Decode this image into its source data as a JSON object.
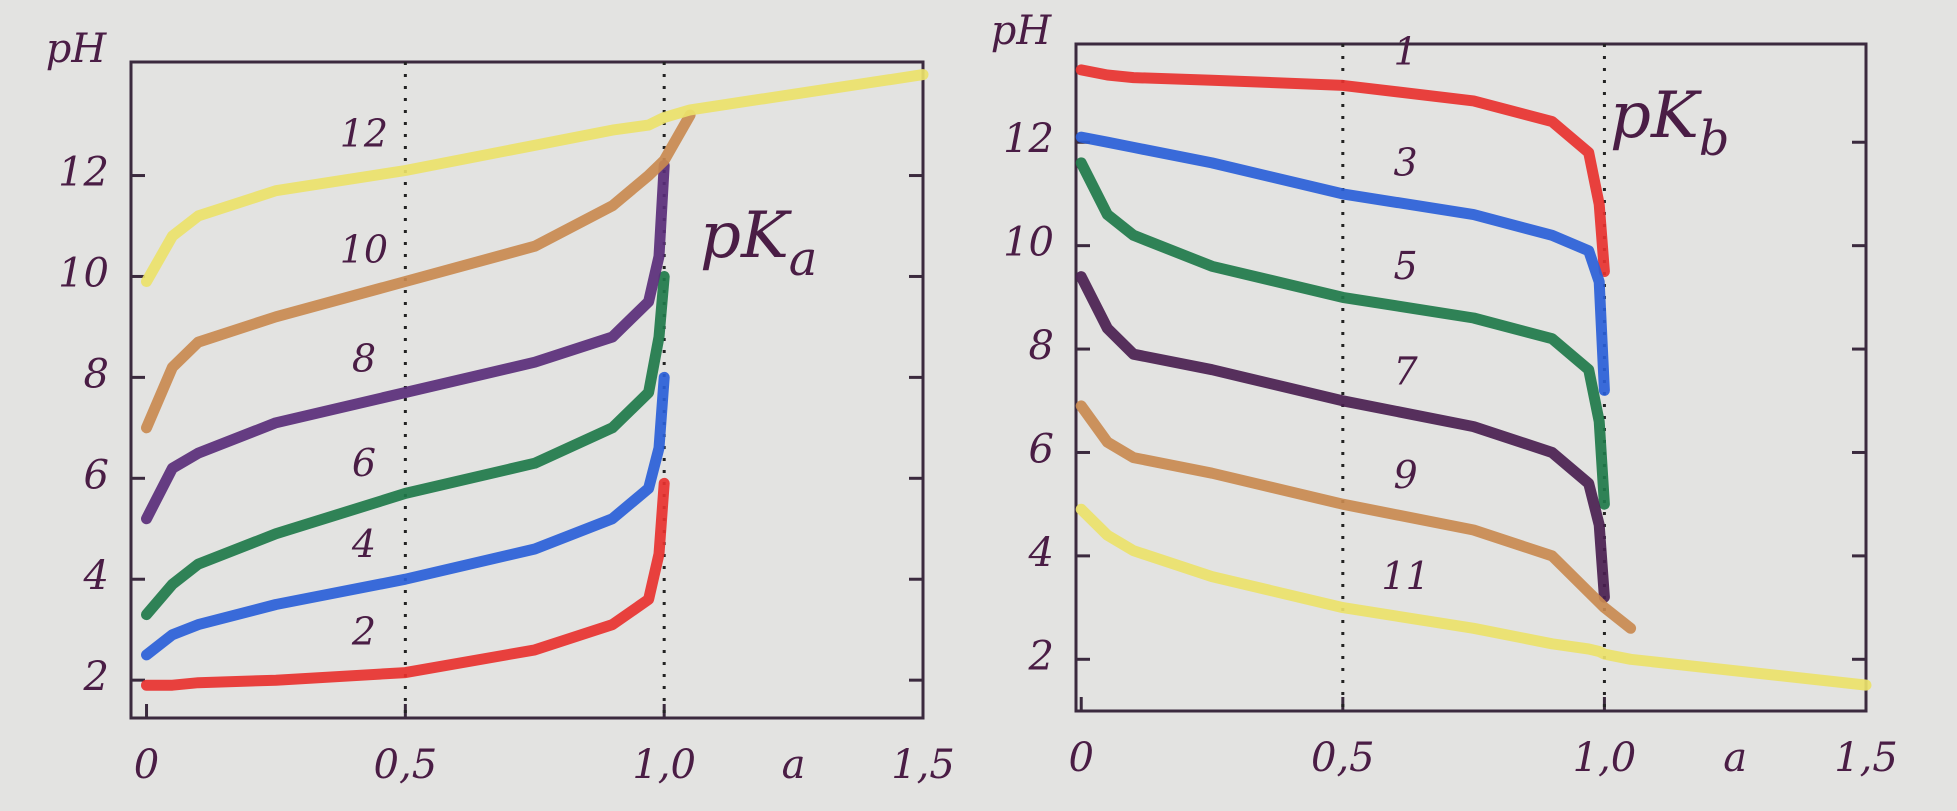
{
  "chart_data": [
    {
      "type": "line",
      "y_label": "pH",
      "x_label": "a",
      "annotation": "pK",
      "annotation_subscript": "a",
      "x": [
        0,
        0.05,
        0.1,
        0.25,
        0.5,
        0.75,
        0.9,
        0.97,
        0.99,
        1.0,
        1.05,
        1.5
      ],
      "xlim": [
        -0.03,
        1.5
      ],
      "xticks": [
        0,
        {
          "value": 0.5,
          "label": "0,5"
        },
        {
          "value": 1.0,
          "label": "1,0"
        },
        {
          "value": 1.5,
          "label": "1,5"
        }
      ],
      "ylim": [
        1.25,
        14.25
      ],
      "yticks": [
        2,
        4,
        6,
        8,
        10,
        12
      ],
      "series": [
        {
          "name": "2",
          "color": "#e8322f",
          "values": [
            1.9,
            1.9,
            1.95,
            2.0,
            2.15,
            2.6,
            3.1,
            3.6,
            4.5,
            5.9,
            null,
            null
          ]
        },
        {
          "name": "4",
          "color": "#2a5fd8",
          "values": [
            2.5,
            2.9,
            3.1,
            3.5,
            4.0,
            4.6,
            5.2,
            5.8,
            6.6,
            8.0,
            null,
            null
          ]
        },
        {
          "name": "6",
          "color": "#1f7a4a",
          "values": [
            3.3,
            3.9,
            4.3,
            4.9,
            5.7,
            6.3,
            7.0,
            7.7,
            8.8,
            10.0,
            null,
            null
          ]
        },
        {
          "name": "8",
          "color": "#5a2e7a",
          "values": [
            5.2,
            6.2,
            6.5,
            7.1,
            7.7,
            8.3,
            8.8,
            9.5,
            10.4,
            12.2,
            null,
            null
          ]
        },
        {
          "name": "10",
          "color": "#c98a50",
          "values": [
            7.0,
            8.2,
            8.7,
            9.2,
            9.9,
            10.6,
            11.4,
            12.0,
            12.2,
            12.3,
            13.2,
            null
          ]
        },
        {
          "name": "12",
          "color": "#ece26a",
          "values": [
            9.9,
            10.8,
            11.2,
            11.7,
            12.1,
            12.6,
            12.9,
            13.0,
            13.1,
            13.15,
            13.3,
            14.0
          ]
        }
      ]
    },
    {
      "type": "line",
      "y_label": "pH",
      "x_label": "a",
      "annotation": "pK",
      "annotation_subscript": "b",
      "x": [
        0,
        0.05,
        0.1,
        0.25,
        0.5,
        0.75,
        0.9,
        0.97,
        0.99,
        1.0,
        1.05,
        1.5
      ],
      "xlim": [
        -0.01,
        1.5
      ],
      "xticks": [
        0,
        {
          "value": 0.5,
          "label": "0,5"
        },
        {
          "value": 1.0,
          "label": "1,0"
        },
        {
          "value": 1.5,
          "label": "1,5"
        }
      ],
      "ylim": [
        1.0,
        13.9
      ],
      "yticks": [
        2,
        4,
        6,
        8,
        10,
        12
      ],
      "series": [
        {
          "name": "1",
          "color": "#e8322f",
          "values": [
            13.4,
            13.3,
            13.25,
            13.2,
            13.1,
            12.8,
            12.4,
            11.8,
            10.8,
            9.5,
            null,
            null
          ]
        },
        {
          "name": "3",
          "color": "#2a5fd8",
          "values": [
            12.1,
            12.0,
            11.9,
            11.6,
            11.0,
            10.6,
            10.2,
            9.9,
            9.3,
            7.2,
            null,
            null
          ]
        },
        {
          "name": "5",
          "color": "#1f7a4a",
          "values": [
            11.6,
            10.6,
            10.2,
            9.6,
            9.0,
            8.6,
            8.2,
            7.6,
            6.6,
            5.0,
            null,
            null
          ]
        },
        {
          "name": "7",
          "color": "#4a2050",
          "values": [
            9.4,
            8.4,
            7.9,
            7.6,
            7.0,
            6.5,
            6.0,
            5.4,
            4.6,
            3.2,
            null,
            null
          ]
        },
        {
          "name": "9",
          "color": "#c98a50",
          "values": [
            6.9,
            6.2,
            5.9,
            5.6,
            5.0,
            4.5,
            4.0,
            3.3,
            3.1,
            3.0,
            2.6,
            null
          ]
        },
        {
          "name": "11",
          "color": "#ece26a",
          "values": [
            4.9,
            4.4,
            4.1,
            3.6,
            3.0,
            2.6,
            2.3,
            2.2,
            2.15,
            2.1,
            2.0,
            1.5
          ]
        }
      ]
    }
  ]
}
